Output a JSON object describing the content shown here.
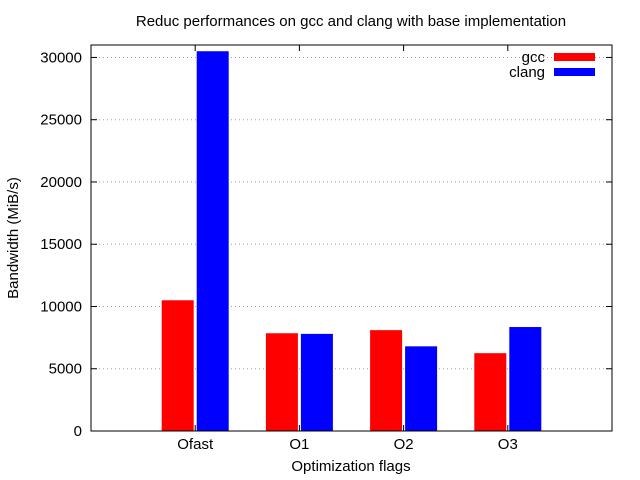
{
  "chart_data": {
    "type": "bar",
    "title": "Reduc performances on gcc and clang with base implementation",
    "xlabel": "Optimization flags",
    "ylabel": "Bandwidth (MiB/s)",
    "categories": [
      "Ofast",
      "O1",
      "O2",
      "O3"
    ],
    "series": [
      {
        "name": "gcc",
        "color": "#ff0000",
        "values": [
          10500,
          7850,
          8100,
          6250
        ]
      },
      {
        "name": "clang",
        "color": "#0000ff",
        "values": [
          30500,
          7800,
          6800,
          8350
        ]
      }
    ],
    "ylim": [
      0,
      31000
    ],
    "yticks": [
      "0",
      "5000",
      "10000",
      "15000",
      "20000",
      "25000",
      "30000"
    ],
    "ytick_values": [
      0,
      5000,
      10000,
      15000,
      20000,
      25000,
      30000
    ],
    "grid": true,
    "legend_position": "top-right"
  }
}
